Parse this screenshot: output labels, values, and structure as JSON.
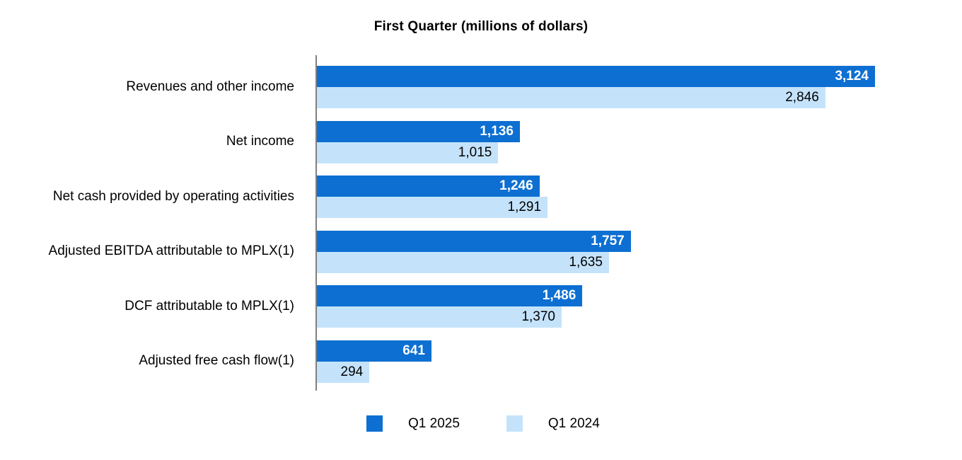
{
  "title": "First Quarter (millions of dollars)",
  "chart_data": {
    "type": "bar",
    "orientation": "horizontal",
    "title": "First Quarter (millions of dollars)",
    "categories": [
      "Revenues and other income",
      "Net income",
      "Net cash provided by operating activities",
      "Adjusted EBITDA attributable to MPLX(1)",
      "DCF attributable to MPLX(1)",
      "Adjusted free cash flow(1)"
    ],
    "series": [
      {
        "name": "Q1 2025",
        "color": "#0d6fd1",
        "values": [
          3124,
          1136,
          1246,
          1757,
          1486,
          641
        ],
        "labels": [
          "3,124",
          "1,136",
          "1,246",
          "1,757",
          "1,486",
          "641"
        ],
        "label_color": "#ffffff",
        "label_weight": "bold"
      },
      {
        "name": "Q1 2024",
        "color": "#c4e3fb",
        "values": [
          2846,
          1015,
          1291,
          1635,
          1370,
          294
        ],
        "labels": [
          "2,846",
          "1,015",
          "1,291",
          "1,635",
          "1,370",
          "294"
        ],
        "label_color": "#000000",
        "label_weight": "normal"
      }
    ],
    "xlim": [
      0,
      3124
    ],
    "xlabel": "",
    "ylabel": "",
    "grid": false,
    "axis_color": "#7f7f7f",
    "legend_position": "bottom",
    "value_labels_inside_bars": true
  }
}
